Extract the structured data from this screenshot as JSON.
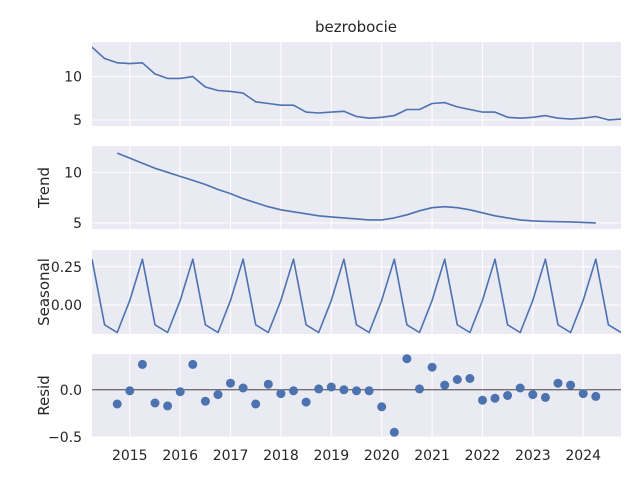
{
  "chart_data": [
    {
      "type": "line",
      "panel": "observed",
      "title": "bezrobocie",
      "ylabel": "",
      "ylim": [
        4.3,
        14.0
      ],
      "yticks": [
        5,
        10
      ],
      "x": [
        "2014-04",
        "2014-07",
        "2014-10",
        "2015-01",
        "2015-04",
        "2015-07",
        "2015-10",
        "2016-01",
        "2016-04",
        "2016-07",
        "2016-10",
        "2017-01",
        "2017-04",
        "2017-07",
        "2017-10",
        "2018-01",
        "2018-04",
        "2018-07",
        "2018-10",
        "2019-01",
        "2019-04",
        "2019-07",
        "2019-10",
        "2020-01",
        "2020-04",
        "2020-07",
        "2020-10",
        "2021-01",
        "2021-04",
        "2021-07",
        "2021-10",
        "2022-01",
        "2022-04",
        "2022-07",
        "2022-10",
        "2023-01",
        "2023-04",
        "2023-07",
        "2023-10",
        "2024-01",
        "2024-04",
        "2024-07",
        "2024-10"
      ],
      "values": [
        13.4,
        12.1,
        11.6,
        11.5,
        11.6,
        10.3,
        9.8,
        9.8,
        10.0,
        8.8,
        8.4,
        8.3,
        8.1,
        7.1,
        6.9,
        6.7,
        6.7,
        5.9,
        5.8,
        5.9,
        6.0,
        5.4,
        5.2,
        5.3,
        5.5,
        6.2,
        6.2,
        6.9,
        7.0,
        6.5,
        6.2,
        5.9,
        5.9,
        5.3,
        5.2,
        5.3,
        5.5,
        5.2,
        5.1,
        5.2,
        5.4,
        5.0,
        5.1
      ]
    },
    {
      "type": "line",
      "panel": "trend",
      "ylabel": "Trend",
      "ylim": [
        4.4,
        12.6
      ],
      "yticks": [
        5,
        10
      ],
      "x": [
        "2014-10",
        "2015-01",
        "2015-04",
        "2015-07",
        "2015-10",
        "2016-01",
        "2016-04",
        "2016-07",
        "2016-10",
        "2017-01",
        "2017-04",
        "2017-07",
        "2017-10",
        "2018-01",
        "2018-04",
        "2018-07",
        "2018-10",
        "2019-01",
        "2019-04",
        "2019-07",
        "2019-10",
        "2020-01",
        "2020-04",
        "2020-07",
        "2020-10",
        "2021-01",
        "2021-04",
        "2021-07",
        "2021-10",
        "2022-01",
        "2022-04",
        "2022-07",
        "2022-10",
        "2023-01",
        "2023-04",
        "2023-07",
        "2023-10",
        "2024-01",
        "2024-04"
      ],
      "values": [
        11.9,
        11.4,
        10.9,
        10.4,
        10.0,
        9.6,
        9.2,
        8.8,
        8.3,
        7.9,
        7.4,
        7.0,
        6.6,
        6.3,
        6.1,
        5.9,
        5.7,
        5.6,
        5.5,
        5.4,
        5.3,
        5.3,
        5.5,
        5.8,
        6.2,
        6.5,
        6.6,
        6.5,
        6.3,
        6.0,
        5.7,
        5.5,
        5.3,
        5.2,
        5.15,
        5.12,
        5.1,
        5.05,
        5.0
      ]
    },
    {
      "type": "line",
      "panel": "seasonal",
      "ylabel": "Seasonal",
      "ylim": [
        -0.19,
        0.36
      ],
      "yticks": [
        0.0,
        0.25
      ],
      "ytick_labels": [
        "0.00",
        "0.25"
      ],
      "x": [
        "2014-04",
        "2014-07",
        "2014-10",
        "2015-01",
        "2015-04",
        "2015-07",
        "2015-10",
        "2016-01",
        "2016-04",
        "2016-07",
        "2016-10",
        "2017-01",
        "2017-04",
        "2017-07",
        "2017-10",
        "2018-01",
        "2018-04",
        "2018-07",
        "2018-10",
        "2019-01",
        "2019-04",
        "2019-07",
        "2019-10",
        "2020-01",
        "2020-04",
        "2020-07",
        "2020-10",
        "2021-01",
        "2021-04",
        "2021-07",
        "2021-10",
        "2022-01",
        "2022-04",
        "2022-07",
        "2022-10",
        "2023-01",
        "2023-04",
        "2023-07",
        "2023-10",
        "2024-01",
        "2024-04",
        "2024-07",
        "2024-10"
      ],
      "values": [
        0.3,
        -0.13,
        -0.18,
        0.03,
        0.3,
        -0.13,
        -0.18,
        0.03,
        0.3,
        -0.13,
        -0.18,
        0.03,
        0.3,
        -0.13,
        -0.18,
        0.03,
        0.3,
        -0.13,
        -0.18,
        0.03,
        0.3,
        -0.13,
        -0.18,
        0.03,
        0.3,
        -0.13,
        -0.18,
        0.03,
        0.3,
        -0.13,
        -0.18,
        0.03,
        0.3,
        -0.13,
        -0.18,
        0.03,
        0.3,
        -0.13,
        -0.18,
        0.03,
        0.3,
        -0.13,
        -0.18
      ]
    },
    {
      "type": "scatter",
      "panel": "resid",
      "ylabel": "Resid",
      "ylim": [
        -0.5,
        0.38
      ],
      "yticks": [
        -0.5,
        0.0
      ],
      "ytick_labels": [
        "−0.5",
        "0.0"
      ],
      "baseline": 0,
      "x": [
        "2014-10",
        "2015-01",
        "2015-04",
        "2015-07",
        "2015-10",
        "2016-01",
        "2016-04",
        "2016-07",
        "2016-10",
        "2017-01",
        "2017-04",
        "2017-07",
        "2017-10",
        "2018-01",
        "2018-04",
        "2018-07",
        "2018-10",
        "2019-01",
        "2019-04",
        "2019-07",
        "2019-10",
        "2020-01",
        "2020-04",
        "2020-07",
        "2020-10",
        "2021-01",
        "2021-04",
        "2021-07",
        "2021-10",
        "2022-01",
        "2022-04",
        "2022-07",
        "2022-10",
        "2023-01",
        "2023-04",
        "2023-07",
        "2023-10",
        "2024-01",
        "2024-04"
      ],
      "values": [
        -0.15,
        -0.01,
        0.27,
        -0.14,
        -0.17,
        -0.02,
        0.27,
        -0.12,
        -0.05,
        0.07,
        0.02,
        -0.15,
        0.06,
        -0.04,
        -0.01,
        -0.13,
        0.01,
        0.03,
        0.0,
        -0.01,
        -0.01,
        -0.18,
        -0.45,
        0.33,
        0.01,
        0.24,
        0.05,
        0.11,
        0.12,
        -0.11,
        -0.09,
        -0.06,
        0.02,
        -0.05,
        -0.08,
        0.07,
        0.05,
        -0.04,
        -0.07
      ]
    }
  ],
  "x_axis": {
    "range": [
      "2014-04",
      "2024-10"
    ],
    "tick_labels": [
      "2015",
      "2016",
      "2017",
      "2018",
      "2019",
      "2020",
      "2021",
      "2022",
      "2023",
      "2024"
    ]
  },
  "colors": {
    "background": "#eaeaf2",
    "grid": "#ffffff",
    "series": "#4c72b0",
    "baseline": "#262626"
  },
  "grid": true
}
